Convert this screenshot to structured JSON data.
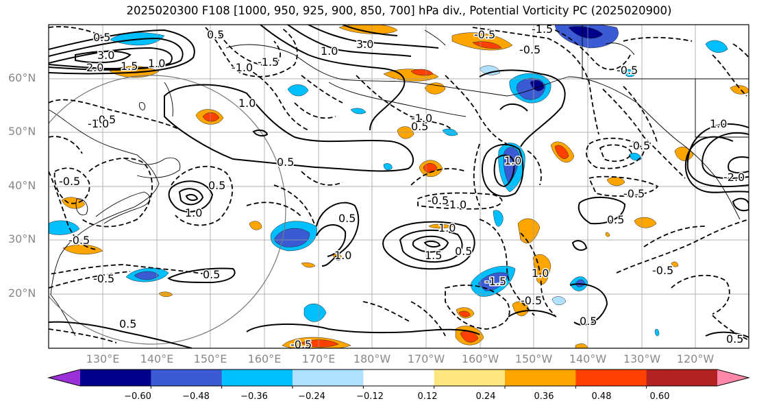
{
  "title": "2025020300 F108 [1000, 950, 925, 900, 850, 700] hPa div., Potential Vorticity PC (2025020900)",
  "lat_labels": [
    "60°N",
    "50°N",
    "40°N",
    "30°N",
    "20°N"
  ],
  "lon_labels": [
    "130°E",
    "140°E",
    "150°E",
    "160°E",
    "170°E",
    "180°W",
    "170°W",
    "160°W",
    "150°W",
    "140°W",
    "130°W",
    "120°W"
  ],
  "colorbar": {
    "ticks": [
      "−0.60",
      "−0.48",
      "−0.36",
      "−0.24",
      "−0.12",
      "0.12",
      "0.24",
      "0.36",
      "0.48",
      "0.60"
    ],
    "colors": [
      "#9b30d9",
      "#00008b",
      "#3b5bd5",
      "#00bfff",
      "#b0e2ff",
      "#ffffff",
      "#ffe680",
      "#ffa500",
      "#ff4000",
      "#b22222",
      "#ff88aa"
    ]
  },
  "contour_labels": {
    "l1": "0.5",
    "l2": "3.0",
    "l3": "2.0",
    "l4": "1.5",
    "l5": "1.0",
    "l6": "-1.0",
    "l7": "-1.5",
    "l8": "0.5",
    "l9": "3.0",
    "l10": "-0.5",
    "l11": "-1.5",
    "l12": "1.0",
    "l13": "1.0",
    "l14": "-0.5",
    "l15": "0.5",
    "l16": "0.5",
    "l17": "1.0",
    "l18": "-0.5",
    "l19": "0.5",
    "l20": "-1.0",
    "l21": "1.0",
    "l22": "1.5",
    "l23": "0.5",
    "l24": "-0.5",
    "l25": "1.0",
    "l26": "-0.5",
    "l27": "0.5",
    "l28": "-1.5",
    "l29": "-0.5",
    "l30": "0.5",
    "l31": "-0.5",
    "l32": "1.0",
    "l33": "-0.5",
    "l34": "-1.0",
    "l35": "0.5",
    "l36": "-0.5",
    "l37": "0.5",
    "l38": "-0.5",
    "l39": "-0.5",
    "l40": "1.0",
    "l41": "-2.0",
    "l42": "0.5",
    "l43": "-0.5",
    "l44": "0.5",
    "l45": "-0.5",
    "l46": "-1.0",
    "l47": "1.0"
  }
}
